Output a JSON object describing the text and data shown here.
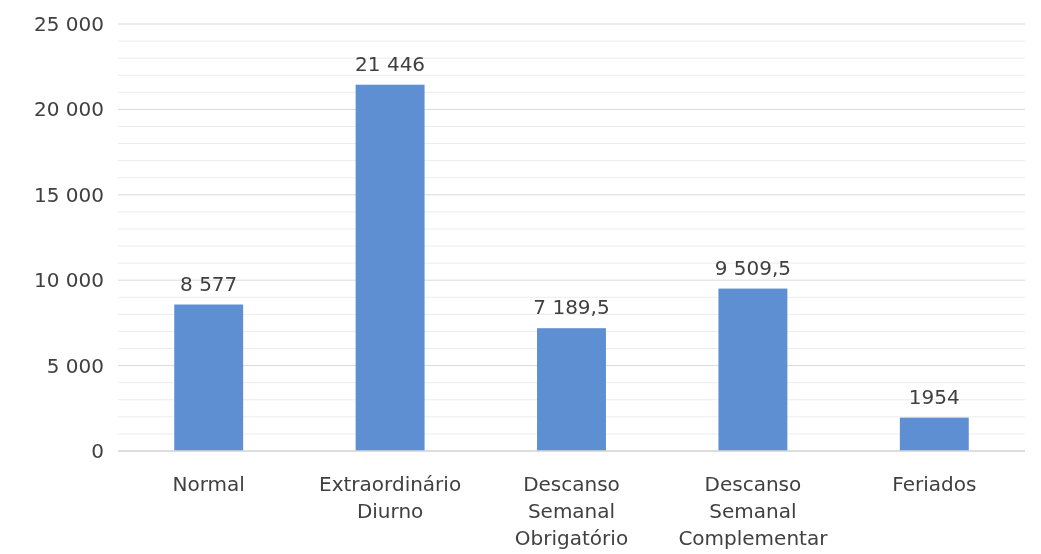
{
  "chart_data": {
    "type": "bar",
    "categories": [
      "Normal",
      "Extraordinário Diurno",
      "Descanso Semanal Obrigatório",
      "Descanso Semanal Complementar",
      "Feriados"
    ],
    "values": [
      8577,
      21446,
      7189.5,
      9509.5,
      1954
    ],
    "value_labels": [
      "8 577",
      "21 446",
      "7 189,5",
      "9 509,5",
      "1954"
    ],
    "color": "#5f8fd3",
    "ylim": [
      0,
      25000
    ],
    "yticks": [
      {
        "value": 0,
        "label": "0"
      },
      {
        "value": 1000,
        "label": null
      },
      {
        "value": 2000,
        "label": null
      },
      {
        "value": 3000,
        "label": null
      },
      {
        "value": 4000,
        "label": null
      },
      {
        "value": 5000,
        "label": "5 000"
      },
      {
        "value": 6000,
        "label": null
      },
      {
        "value": 7000,
        "label": null
      },
      {
        "value": 8000,
        "label": null
      },
      {
        "value": 9000,
        "label": null
      },
      {
        "value": 10000,
        "label": "10 000"
      },
      {
        "value": 11000,
        "label": null
      },
      {
        "value": 12000,
        "label": null
      },
      {
        "value": 13000,
        "label": null
      },
      {
        "value": 14000,
        "label": null
      },
      {
        "value": 15000,
        "label": "15 000"
      },
      {
        "value": 16000,
        "label": null
      },
      {
        "value": 17000,
        "label": null
      },
      {
        "value": 18000,
        "label": null
      },
      {
        "value": 19000,
        "label": null
      },
      {
        "value": 20000,
        "label": "20 000"
      },
      {
        "value": 21000,
        "label": null
      },
      {
        "value": 22000,
        "label": null
      },
      {
        "value": 23000,
        "label": null
      },
      {
        "value": 24000,
        "label": null
      },
      {
        "value": 25000,
        "label": "25 000"
      }
    ],
    "grid": true
  }
}
